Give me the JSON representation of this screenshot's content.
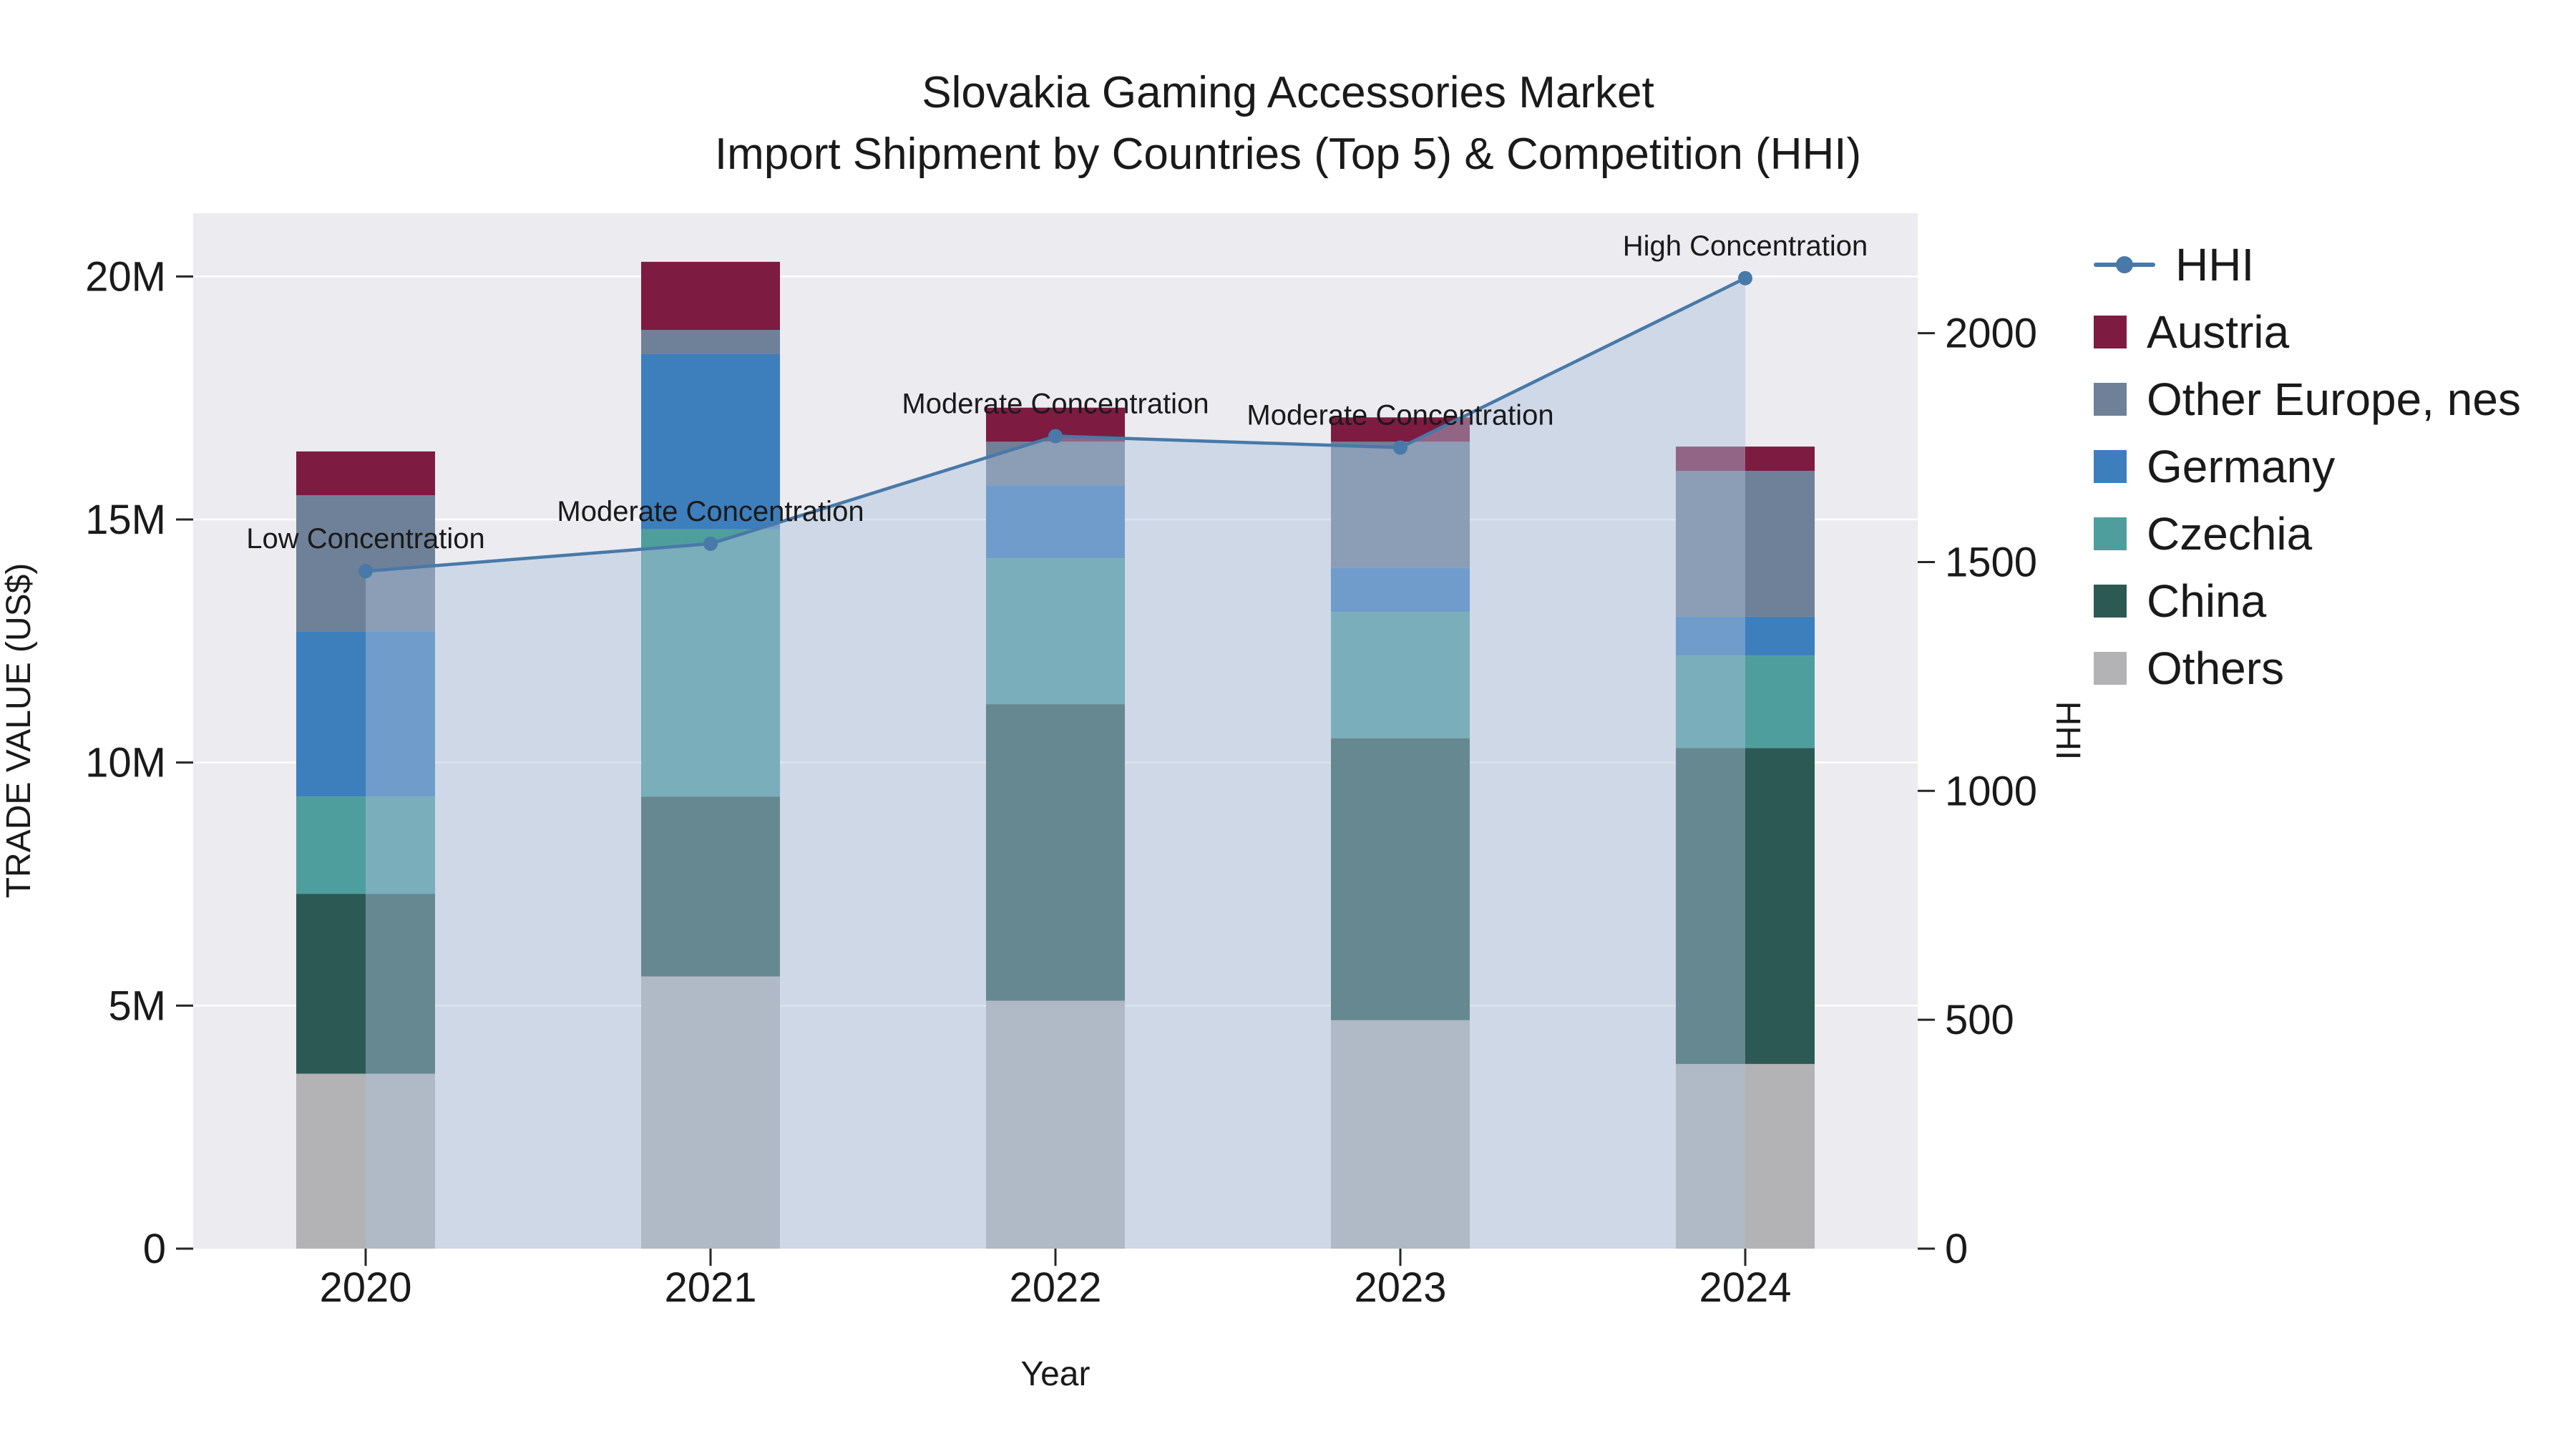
{
  "chart_data": {
    "type": "bar",
    "subtype": "stacked-bars-with-hhi-line-and-area",
    "title_line1": "Slovakia Gaming Accessories Market",
    "title_line2": "Import Shipment by Countries (Top 5) & Competition (HHI)",
    "categories": [
      "2020",
      "2021",
      "2022",
      "2023",
      "2024"
    ],
    "series": [
      {
        "name": "Others",
        "color": "#b3b2b4",
        "values": [
          3.6,
          5.6,
          5.1,
          4.7,
          3.8
        ]
      },
      {
        "name": "China",
        "color": "#2d5955",
        "values": [
          3.7,
          3.7,
          6.1,
          5.8,
          6.5
        ]
      },
      {
        "name": "Czechia",
        "color": "#4f9e9e",
        "values": [
          2.0,
          5.5,
          3.0,
          2.6,
          1.9
        ]
      },
      {
        "name": "Germany",
        "color": "#3d7ebd",
        "values": [
          3.4,
          3.6,
          1.5,
          0.9,
          0.8
        ]
      },
      {
        "name": "Other Europe, nes",
        "color": "#6f8198",
        "values": [
          2.8,
          0.5,
          0.9,
          2.6,
          3.0
        ]
      },
      {
        "name": "Austria",
        "color": "#7d1b40",
        "values": [
          0.9,
          1.4,
          0.7,
          0.5,
          0.5
        ]
      }
    ],
    "bar_totals_millions": [
      16.4,
      20.3,
      17.3,
      17.1,
      16.5
    ],
    "values_unit": "millions USD",
    "hhi_line": {
      "name": "HHI",
      "values": [
        1480,
        1540,
        1775,
        1750,
        2120
      ],
      "color": "#4879a8",
      "fill": "rgba(174,193,219,0.45)"
    },
    "annotations": [
      "Low Concentration",
      "Moderate Concentration",
      "Moderate Concentration",
      "Moderate Concentration",
      "High Concentration"
    ],
    "axis_left": {
      "title": "TRADE VALUE (US$)",
      "range": [
        0,
        21.3
      ],
      "ticks": [
        {
          "value": 0,
          "label": "0"
        },
        {
          "value": 5,
          "label": "5M"
        },
        {
          "value": 10,
          "label": "10M"
        },
        {
          "value": 15,
          "label": "15M"
        },
        {
          "value": 20,
          "label": "20M"
        }
      ]
    },
    "axis_right": {
      "title": "HHI",
      "range": [
        0,
        2262
      ],
      "ticks": [
        {
          "value": 0,
          "label": "0"
        },
        {
          "value": 500,
          "label": "500"
        },
        {
          "value": 1000,
          "label": "1000"
        },
        {
          "value": 1500,
          "label": "1500"
        },
        {
          "value": 2000,
          "label": "2000"
        }
      ]
    },
    "axis_x": {
      "title": "Year"
    },
    "legend": [
      {
        "label": "HHI",
        "color": "#4879a8",
        "type": "line"
      },
      {
        "label": "Austria",
        "color": "#7d1b40",
        "type": "swatch"
      },
      {
        "label": "Other Europe, nes",
        "color": "#6f8198",
        "type": "swatch"
      },
      {
        "label": "Germany",
        "color": "#3d7ebd",
        "type": "swatch"
      },
      {
        "label": "Czechia",
        "color": "#4f9e9e",
        "type": "swatch"
      },
      {
        "label": "China",
        "color": "#2d5955",
        "type": "swatch"
      },
      {
        "label": "Others",
        "color": "#b3b2b4",
        "type": "swatch"
      }
    ],
    "layout": {
      "grid": true,
      "legend_position": "right",
      "plot_bg": "#ebebf0"
    },
    "colors": {
      "plot_bg": "#ebebf0",
      "grid": "#ffffff",
      "figure_bg": "#ffffff",
      "text": "#1a1a1a"
    }
  }
}
